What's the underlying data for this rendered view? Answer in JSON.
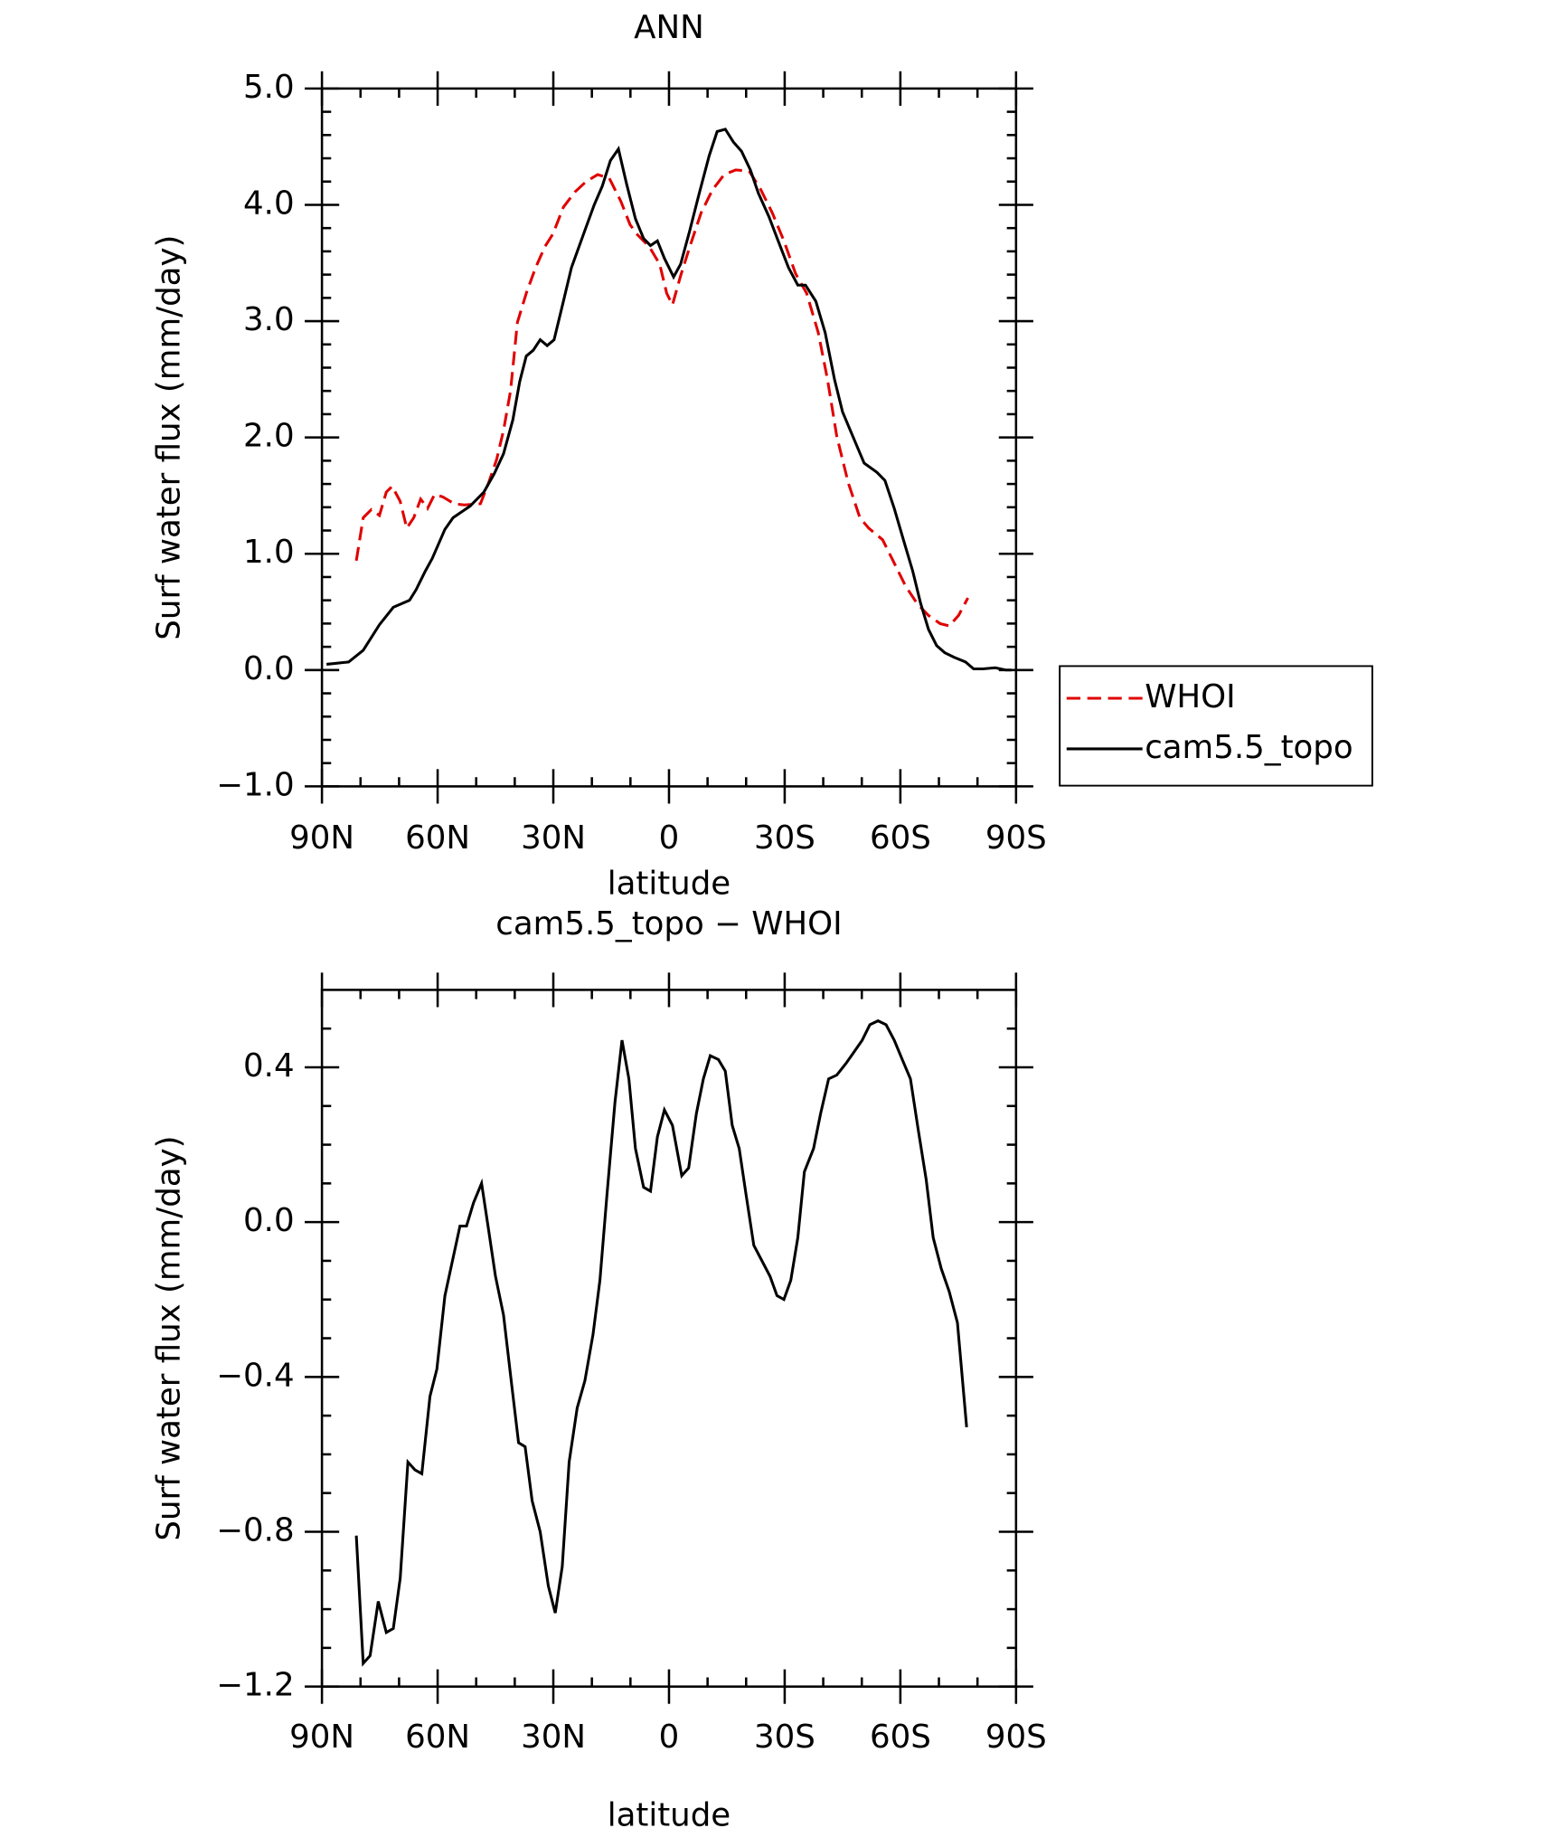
{
  "chart_data": [
    {
      "type": "line",
      "title": "ANN",
      "xlabel": "latitude",
      "ylabel": "Surf water flux (mm/day)",
      "xlim": [
        90,
        -90
      ],
      "xticks": [
        {
          "value": 90,
          "label": "90N"
        },
        {
          "value": 60,
          "label": "60N"
        },
        {
          "value": 30,
          "label": "30N"
        },
        0,
        {
          "value": -30,
          "label": "30S"
        },
        {
          "value": -60,
          "label": "60S"
        },
        {
          "value": -90,
          "label": "90S"
        }
      ],
      "xminor": [
        80,
        70,
        50,
        40,
        20,
        10,
        -10,
        -20,
        -40,
        -50,
        -70,
        -80
      ],
      "ylim": [
        -1,
        5
      ],
      "yticks": [
        {
          "value": -1,
          "label": "−1.0"
        },
        {
          "value": 0,
          "label": "0.0"
        },
        {
          "value": 1,
          "label": "1.0"
        },
        {
          "value": 2,
          "label": "2.0"
        },
        {
          "value": 3,
          "label": "3.0"
        },
        {
          "value": 4,
          "label": "4.0"
        },
        {
          "value": 5,
          "label": "5.0"
        }
      ],
      "yminor": [
        -0.8,
        -0.6,
        -0.4,
        -0.2,
        0.2,
        0.4,
        0.6,
        0.8,
        1.2,
        1.4,
        1.6,
        1.8,
        2.2,
        2.4,
        2.6,
        2.8,
        3.2,
        3.4,
        3.6,
        3.8,
        4.2,
        4.4,
        4.6,
        4.8
      ],
      "legend": "right",
      "series": [
        {
          "name": "WHOI",
          "color": "#e00000",
          "linestyle": "dashed",
          "x": [
            81.1,
            79.3,
            77.2,
            75.1,
            73.3,
            71.8,
            69.7,
            68.0,
            66.2,
            64.4,
            62.6,
            60.8,
            58.7,
            55.7,
            53.1,
            48.9,
            46.8,
            44.7,
            42.9,
            41.1,
            39.3,
            37.0,
            34.6,
            32.2,
            30.1,
            27.4,
            24.4,
            21.5,
            18.5,
            15.5,
            12.5,
            10.1,
            8.1,
            5.1,
            2.4,
            0.6,
            -0.9,
            -3.0,
            -5.4,
            -8.3,
            -11.3,
            -14.3,
            -17.3,
            -20.8,
            -23.8,
            -26.8,
            -29.8,
            -32.8,
            -35.7,
            -38.7,
            -41.1,
            -43.5,
            -46.5,
            -49.5,
            -51.8,
            -55.4,
            -58.4,
            -61.4,
            -64.4,
            -67.3,
            -70.3,
            -72.7,
            -75.1,
            -77.5
          ],
          "values": [
            0.94,
            1.31,
            1.38,
            1.33,
            1.53,
            1.58,
            1.45,
            1.22,
            1.31,
            1.47,
            1.39,
            1.51,
            1.49,
            1.43,
            1.42,
            1.43,
            1.61,
            1.81,
            2.06,
            2.4,
            2.99,
            3.24,
            3.46,
            3.64,
            3.75,
            3.98,
            4.11,
            4.2,
            4.26,
            4.23,
            4.03,
            3.83,
            3.74,
            3.64,
            3.49,
            3.24,
            3.14,
            3.39,
            3.64,
            3.93,
            4.13,
            4.26,
            4.3,
            4.29,
            4.13,
            3.93,
            3.69,
            3.41,
            3.24,
            2.9,
            2.5,
            2.01,
            1.61,
            1.31,
            1.22,
            1.12,
            0.92,
            0.72,
            0.57,
            0.47,
            0.4,
            0.38,
            0.47,
            0.62
          ]
        },
        {
          "name": "cam5.5_topo",
          "color": "#000000",
          "linestyle": "solid",
          "x": [
            88.8,
            83.1,
            79.3,
            75.1,
            71.5,
            67.3,
            65.6,
            63.2,
            61.4,
            58.1,
            56.0,
            51.6,
            48.0,
            45.3,
            42.9,
            40.5,
            38.7,
            37.0,
            35.2,
            33.4,
            31.6,
            29.8,
            27.4,
            25.3,
            21.8,
            19.4,
            17.3,
            15.2,
            13.1,
            11.0,
            8.7,
            6.6,
            4.8,
            3.0,
            1.2,
            -1.2,
            -3.0,
            -5.4,
            -7.7,
            -10.4,
            -12.5,
            -14.6,
            -16.7,
            -18.8,
            -21.1,
            -23.2,
            -25.9,
            -28.3,
            -31.0,
            -33.4,
            -35.4,
            -38.1,
            -40.5,
            -42.9,
            -45.0,
            -47.4,
            -50.6,
            -53.9,
            -56.0,
            -58.4,
            -60.8,
            -63.2,
            -65.2,
            -67.3,
            -69.4,
            -71.5,
            -73.9,
            -76.9,
            -79.0,
            -81.4,
            -84.6,
            -87.3,
            -88.8
          ],
          "values": [
            0.05,
            0.07,
            0.17,
            0.39,
            0.54,
            0.6,
            0.69,
            0.85,
            0.96,
            1.21,
            1.31,
            1.41,
            1.53,
            1.69,
            1.86,
            2.15,
            2.48,
            2.7,
            2.75,
            2.84,
            2.79,
            2.84,
            3.17,
            3.46,
            3.78,
            4.0,
            4.16,
            4.38,
            4.48,
            4.18,
            3.88,
            3.71,
            3.65,
            3.69,
            3.54,
            3.38,
            3.49,
            3.78,
            4.08,
            4.42,
            4.63,
            4.65,
            4.54,
            4.46,
            4.3,
            4.1,
            3.9,
            3.69,
            3.46,
            3.31,
            3.31,
            3.17,
            2.9,
            2.5,
            2.22,
            2.03,
            1.78,
            1.7,
            1.63,
            1.39,
            1.12,
            0.85,
            0.58,
            0.35,
            0.21,
            0.15,
            0.11,
            0.07,
            0.01,
            0.01,
            0.02,
            0.0,
            0.0
          ]
        }
      ]
    },
    {
      "type": "line",
      "title": "cam5.5_topo − WHOI",
      "xlabel": "latitude",
      "ylabel": "Surf water flux (mm/day)",
      "xlim": [
        90,
        -90
      ],
      "xticks": [
        {
          "value": 90,
          "label": "90N"
        },
        {
          "value": 60,
          "label": "60N"
        },
        {
          "value": 30,
          "label": "30N"
        },
        0,
        {
          "value": -30,
          "label": "30S"
        },
        {
          "value": -60,
          "label": "60S"
        },
        {
          "value": -90,
          "label": "90S"
        }
      ],
      "xminor": [
        80,
        70,
        50,
        40,
        20,
        10,
        -10,
        -20,
        -40,
        -50,
        -70,
        -80
      ],
      "ylim": [
        -1.2,
        0.6
      ],
      "yticks": [
        {
          "value": -1.2,
          "label": "−1.2"
        },
        {
          "value": -0.8,
          "label": "−0.8"
        },
        {
          "value": -0.4,
          "label": "−0.4"
        },
        {
          "value": 0,
          "label": "0.0"
        },
        0.4
      ],
      "yminor": [
        -1.1,
        -1.0,
        -0.9,
        -0.7,
        -0.6,
        -0.5,
        -0.3,
        -0.2,
        -0.1,
        0.1,
        0.2,
        0.3,
        0.5
      ],
      "series": [
        {
          "color": "#000000",
          "linestyle": "solid",
          "x": [
            81.1,
            79.3,
            77.5,
            75.4,
            73.3,
            71.5,
            69.7,
            67.7,
            65.9,
            64.1,
            62.0,
            60.2,
            58.1,
            54.2,
            52.5,
            50.7,
            48.6,
            46.8,
            45.0,
            42.9,
            40.8,
            39.0,
            37.3,
            35.5,
            33.4,
            31.3,
            29.5,
            27.7,
            25.9,
            23.8,
            21.8,
            19.7,
            17.9,
            16.1,
            14.0,
            12.2,
            10.4,
            8.7,
            6.6,
            4.8,
            3.0,
            1.2,
            -0.9,
            -3.3,
            -5.1,
            -7.1,
            -8.9,
            -10.7,
            -12.8,
            -14.6,
            -16.4,
            -18.2,
            -20.0,
            -22.0,
            -24.1,
            -26.2,
            -28.0,
            -29.8,
            -31.6,
            -33.4,
            -35.1,
            -37.5,
            -39.3,
            -41.4,
            -43.5,
            -45.9,
            -48.0,
            -50.1,
            -52.1,
            -54.2,
            -56.3,
            -58.4,
            -60.5,
            -62.6,
            -64.6,
            -66.7,
            -68.5,
            -70.6,
            -72.7,
            -74.8,
            -77.2
          ],
          "values": [
            -0.81,
            -1.14,
            -1.12,
            -0.98,
            -1.06,
            -1.05,
            -0.92,
            -0.62,
            -0.64,
            -0.65,
            -0.45,
            -0.38,
            -0.19,
            -0.01,
            -0.01,
            0.05,
            0.1,
            -0.02,
            -0.14,
            -0.24,
            -0.42,
            -0.57,
            -0.58,
            -0.72,
            -0.8,
            -0.94,
            -1.01,
            -0.89,
            -0.62,
            -0.48,
            -0.41,
            -0.29,
            -0.15,
            0.07,
            0.31,
            0.47,
            0.37,
            0.19,
            0.09,
            0.08,
            0.22,
            0.29,
            0.25,
            0.12,
            0.14,
            0.28,
            0.37,
            0.43,
            0.42,
            0.39,
            0.25,
            0.19,
            0.07,
            -0.06,
            -0.1,
            -0.14,
            -0.19,
            -0.2,
            -0.15,
            -0.04,
            0.13,
            0.19,
            0.28,
            0.37,
            0.38,
            0.41,
            0.44,
            0.47,
            0.51,
            0.52,
            0.51,
            0.47,
            0.42,
            0.37,
            0.24,
            0.11,
            -0.04,
            -0.12,
            -0.18,
            -0.26,
            -0.53
          ]
        }
      ]
    }
  ]
}
